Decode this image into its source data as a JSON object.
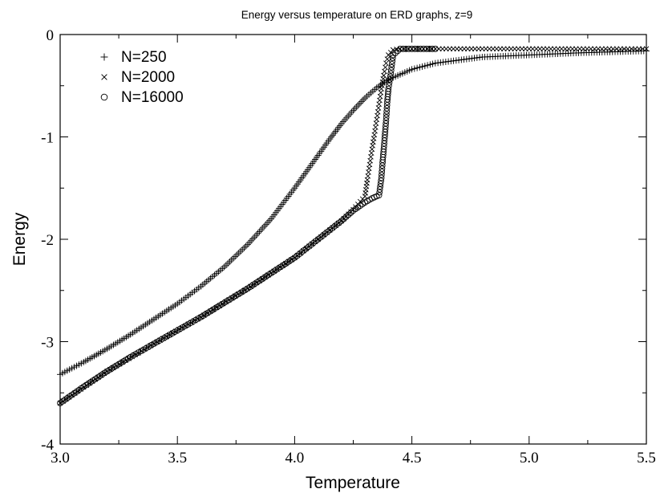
{
  "chart_data": {
    "type": "scatter",
    "title": "Energy versus temperature on ERD graphs, z=9",
    "xlabel": "Temperature",
    "ylabel": "Energy",
    "xlim": [
      3.0,
      5.5
    ],
    "ylim": [
      -4,
      0
    ],
    "x_ticks": [
      3.0,
      3.5,
      4.0,
      4.5,
      5.0,
      5.5
    ],
    "x_tick_labels": [
      "3.0",
      "3.5",
      "4.0",
      "4.5",
      "5.0",
      "5.5"
    ],
    "y_ticks": [
      0,
      -1,
      -2,
      -3,
      -4
    ],
    "y_tick_labels": [
      "0",
      "-1",
      "-2",
      "-3",
      "-4"
    ],
    "grid": false,
    "legend_position": "top-left",
    "series": [
      {
        "name": "N=250",
        "marker": "plus",
        "x": [
          3.0,
          3.1,
          3.2,
          3.3,
          3.4,
          3.5,
          3.6,
          3.7,
          3.8,
          3.9,
          4.0,
          4.05,
          4.1,
          4.15,
          4.2,
          4.25,
          4.3,
          4.35,
          4.4,
          4.5,
          4.6,
          4.8,
          5.0,
          5.2,
          5.5
        ],
        "y": [
          -3.32,
          -3.2,
          -3.07,
          -2.93,
          -2.78,
          -2.63,
          -2.46,
          -2.27,
          -2.05,
          -1.8,
          -1.5,
          -1.34,
          -1.18,
          -1.02,
          -0.87,
          -0.74,
          -0.62,
          -0.52,
          -0.44,
          -0.34,
          -0.28,
          -0.22,
          -0.2,
          -0.18,
          -0.16
        ]
      },
      {
        "name": "N=2000",
        "marker": "x",
        "x": [
          3.0,
          3.2,
          3.4,
          3.6,
          3.8,
          4.0,
          4.1,
          4.2,
          4.25,
          4.3,
          4.31,
          4.32,
          4.33,
          4.34,
          4.35,
          4.36,
          4.37,
          4.38,
          4.39,
          4.4,
          4.42,
          4.45,
          4.5,
          4.6,
          4.8,
          5.0,
          5.2,
          5.5
        ],
        "y": [
          -3.6,
          -3.29,
          -3.02,
          -2.76,
          -2.48,
          -2.18,
          -2.0,
          -1.82,
          -1.71,
          -1.58,
          -1.42,
          -1.27,
          -1.12,
          -0.98,
          -0.83,
          -0.68,
          -0.53,
          -0.4,
          -0.28,
          -0.2,
          -0.15,
          -0.14,
          -0.14,
          -0.14,
          -0.14,
          -0.14,
          -0.14,
          -0.14
        ]
      },
      {
        "name": "N=16000",
        "marker": "circle",
        "x": [
          3.0,
          3.1,
          3.2,
          3.3,
          3.4,
          3.5,
          3.6,
          3.7,
          3.8,
          3.9,
          4.0,
          4.1,
          4.2,
          4.25,
          4.3,
          4.33,
          4.36,
          4.37,
          4.375,
          4.38,
          4.385,
          4.39,
          4.395,
          4.4,
          4.41,
          4.42,
          4.45,
          4.5,
          4.6
        ],
        "y": [
          -3.6,
          -3.44,
          -3.29,
          -3.15,
          -3.02,
          -2.89,
          -2.76,
          -2.62,
          -2.48,
          -2.33,
          -2.18,
          -2.0,
          -1.82,
          -1.72,
          -1.64,
          -1.6,
          -1.57,
          -1.4,
          -1.25,
          -1.12,
          -0.98,
          -0.84,
          -0.66,
          -0.53,
          -0.38,
          -0.2,
          -0.14,
          -0.14,
          -0.14
        ]
      }
    ]
  }
}
